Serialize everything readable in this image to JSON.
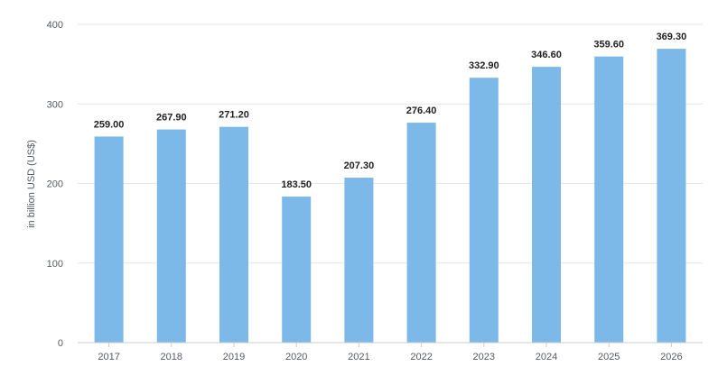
{
  "chart_data": {
    "type": "bar",
    "categories": [
      "2017",
      "2018",
      "2019",
      "2020",
      "2021",
      "2022",
      "2023",
      "2024",
      "2025",
      "2026"
    ],
    "values": [
      259.0,
      267.9,
      271.2,
      183.5,
      207.3,
      276.4,
      332.9,
      346.6,
      359.6,
      369.3
    ],
    "value_labels": [
      "259.00",
      "267.90",
      "271.20",
      "183.50",
      "207.30",
      "276.40",
      "332.90",
      "346.60",
      "359.60",
      "369.30"
    ],
    "ylabel": "in billion USD (US$)",
    "ylim": [
      0,
      400
    ],
    "yticks": [
      0,
      100,
      200,
      300,
      400
    ],
    "grid": true,
    "bar_color": "#7cb9e8",
    "grid_color": "#e6e6e6"
  }
}
